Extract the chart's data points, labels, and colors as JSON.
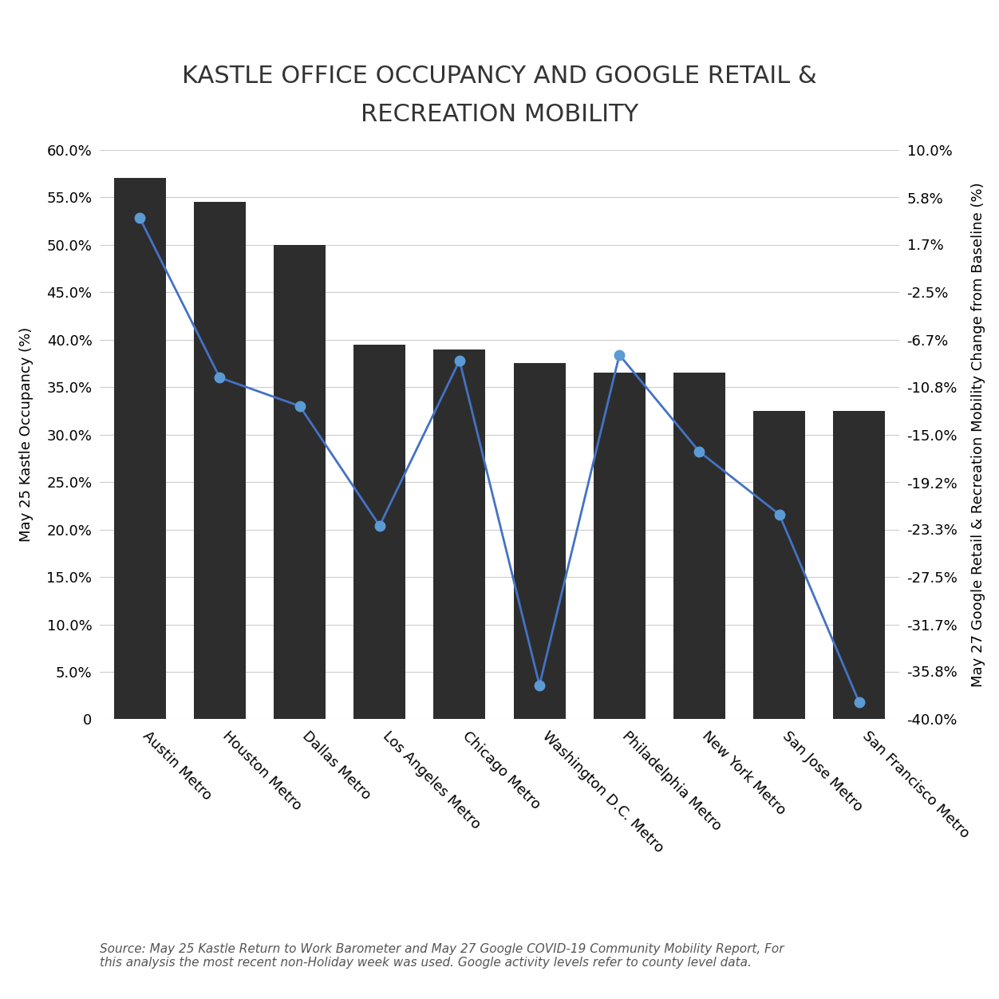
{
  "title": "KASTLE OFFICE OCCUPANCY AND GOOGLE RETAIL &\nRECREATION MOBILITY",
  "categories": [
    "Austin Metro",
    "Houston Metro",
    "Dallas Metro",
    "Los Angeles Metro",
    "Chicago Metro",
    "Washington D.C. Metro",
    "Philadelphia Metro",
    "New York Metro",
    "San Jose Metro",
    "San Francisco Metro"
  ],
  "bar_values": [
    57.0,
    54.5,
    50.0,
    39.5,
    39.0,
    37.5,
    36.5,
    36.5,
    32.5,
    32.5
  ],
  "line_values": [
    4.0,
    -10.0,
    -12.5,
    -23.0,
    -8.5,
    -37.0,
    -8.0,
    -16.5,
    -22.0,
    -38.5
  ],
  "bar_color": "#2d2d2d",
  "line_color": "#4472C4",
  "marker_color": "#5b9bd5",
  "background_color": "#ffffff",
  "ylabel_left": "May 25 Kastle Occupancy (%)",
  "ylabel_right": "May 27 Google Retail & Recreation Mobility Change from Baseline (%)",
  "ylim_left": [
    0,
    60
  ],
  "ylim_right": [
    -40,
    10
  ],
  "yticks_left": [
    0,
    5.0,
    10.0,
    15.0,
    20.0,
    25.0,
    30.0,
    35.0,
    40.0,
    45.0,
    50.0,
    55.0,
    60.0
  ],
  "yticks_left_labels": [
    "0",
    "5.0%",
    "10.0%",
    "15.0%",
    "20.0%",
    "25.0%",
    "30.0%",
    "35.0%",
    "40.0%",
    "45.0%",
    "50.0%",
    "55.0%",
    "60.0%"
  ],
  "yticks_right": [
    10.0,
    5.8,
    1.7,
    -2.5,
    -6.7,
    -10.8,
    -15.0,
    -19.2,
    -23.3,
    -27.5,
    -31.7,
    -35.8,
    -40.0
  ],
  "yticks_right_labels": [
    "10.0%",
    "5.8%",
    "1.7%",
    "-2.5%",
    "-6.7%",
    "-10.8%",
    "-15.0%",
    "-19.2%",
    "-23.3%",
    "-27.5%",
    "-31.7%",
    "-35.8%",
    "-40.0%"
  ],
  "legend_bar_label": "May 25 Kastle Occupancy (%)",
  "legend_line_label": "May 27 Google Retail & Recreation Mobility Change from Baseline (%)",
  "source_text": "Source: May 25 Kastle Return to Work Barometer and May 27 Google COVID-19 Community Mobility Report, For\nthis analysis the most recent non-Holiday week was used. Google activity levels refer to county level data.",
  "title_fontsize": 22,
  "axis_label_fontsize": 13,
  "tick_fontsize": 13,
  "legend_fontsize": 13,
  "source_fontsize": 11
}
